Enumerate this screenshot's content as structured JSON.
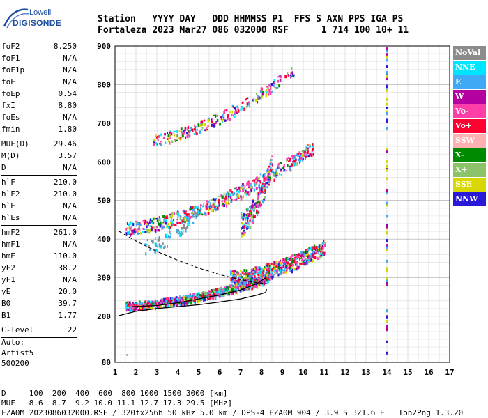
{
  "logo": {
    "line1": "Lowell",
    "line2": "DIGISONDE"
  },
  "header": {
    "row1": "Station   YYYY DAY   DDD HHMMSS P1  FFS S AXN PPS IGA PS",
    "row2": "Fortaleza 2023 Mar27 086 032000 RSF      1 714 100 10+ 11"
  },
  "params": {
    "group1": [
      [
        "foF2",
        "8.250"
      ],
      [
        "foF1",
        "N/A"
      ],
      [
        "foF1p",
        "N/A"
      ],
      [
        "foE",
        "N/A"
      ],
      [
        "foEp",
        "0.54"
      ],
      [
        "fxI",
        "8.80"
      ],
      [
        "foEs",
        "N/A"
      ],
      [
        "fmin",
        "1.80"
      ]
    ],
    "group2": [
      [
        "MUF(D)",
        "29.46"
      ],
      [
        "M(D)",
        "3.57"
      ],
      [
        "D",
        "N/A"
      ]
    ],
    "group3": [
      [
        "h`F",
        "210.0"
      ],
      [
        "h`F2",
        "210.0"
      ],
      [
        "h`E",
        "N/A"
      ],
      [
        "h`Es",
        "N/A"
      ]
    ],
    "group4": [
      [
        "hmF2",
        "261.0"
      ],
      [
        "hmF1",
        "N/A"
      ],
      [
        "hmE",
        "110.0"
      ],
      [
        "yF2",
        "38.2"
      ],
      [
        "yF1",
        "N/A"
      ],
      [
        "yE",
        "20.0"
      ],
      [
        "B0",
        "39.7"
      ],
      [
        "B1",
        "1.77"
      ]
    ],
    "group5": [
      [
        "C-level",
        "22"
      ]
    ]
  },
  "auto": {
    "line1": "Auto:",
    "line2": "Artist5",
    "line3": "500200"
  },
  "legend": [
    {
      "label": "NoVal",
      "color": "#8c8c8c"
    },
    {
      "label": "NNE",
      "color": "#00e5ff"
    },
    {
      "label": "E",
      "color": "#3fa9f5"
    },
    {
      "label": "W",
      "color": "#b4009e"
    },
    {
      "label": "Vo-",
      "color": "#ff3fa8"
    },
    {
      "label": "Vo+",
      "color": "#ff0030"
    },
    {
      "label": "SSW",
      "color": "#ffb0b0"
    },
    {
      "label": "X-",
      "color": "#008a00"
    },
    {
      "label": "X+",
      "color": "#8cc26a"
    },
    {
      "label": "SSE",
      "color": "#d8d800"
    },
    {
      "label": "NNW",
      "color": "#2a1ad8"
    }
  ],
  "chart_data": {
    "type": "scatter",
    "x_ticks": [
      "1",
      "2",
      "3",
      "4",
      "5",
      "6",
      "7",
      "8",
      "9",
      "10",
      "11",
      "12",
      "13",
      "14",
      "15",
      "16",
      "17"
    ],
    "y_ticks": [
      "900",
      "800",
      "700",
      "600",
      "500",
      "400",
      "300",
      "200",
      "80"
    ],
    "xlim": [
      1,
      17
    ],
    "ylim": [
      80,
      900
    ]
  },
  "footer": {
    "row1": "D     100  200  400  600  800 1000 1500 3000 [km]",
    "row2": "MUF   8.6  8.7  9.2 10.0 11.1 12.7 17.3 29.5 [MHz]",
    "row3": "FZA0M_2023086032000.RSF / 320fx256h 50 kHz 5.0 km / DPS-4 FZA0M 904 / 3.9 S 321.6 E   Ion2Png 1.3.20"
  }
}
